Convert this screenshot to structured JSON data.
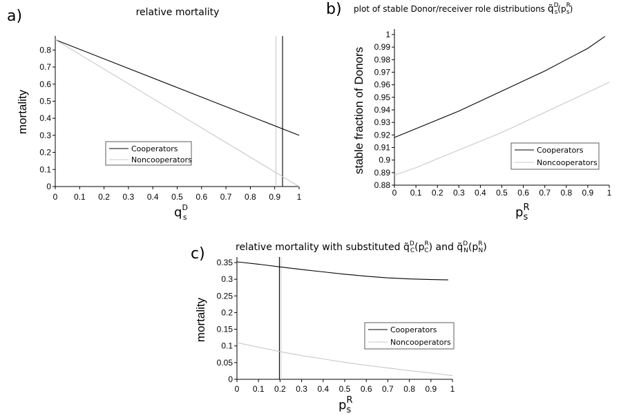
{
  "chart_data": [
    {
      "panel": "a)",
      "type": "line",
      "title": "relative mortality",
      "ylabel": "mortality",
      "xlabel": {
        "base": "q",
        "sub": "s",
        "sup": "D"
      },
      "xlim": [
        0,
        1
      ],
      "ylim": [
        0,
        0.85
      ],
      "xticks": [
        "0",
        "0.1",
        "0.2",
        "0.3",
        "0.4",
        "0.5",
        "0.6",
        "0.7",
        "0.8",
        "0.9",
        "1"
      ],
      "yticks": [
        "0",
        "0.1",
        "0.2",
        "0.3",
        "0.4",
        "0.5",
        "0.6",
        "0.7",
        "0.8"
      ],
      "series": [
        {
          "name": "Cooperators",
          "color": "#000000",
          "x": [
            0,
            1
          ],
          "y": [
            0.86,
            0.3
          ]
        },
        {
          "name": "Noncooperators",
          "color": "#c8c8c8",
          "x": [
            0,
            1
          ],
          "y": [
            0.86,
            0.0
          ]
        }
      ],
      "vlines": [
        {
          "x": 0.932,
          "color": "#000000"
        },
        {
          "x": 0.905,
          "color": "#c8c8c8"
        }
      ],
      "legend": "center"
    },
    {
      "panel": "b)",
      "type": "line",
      "title": {
        "text": "plot of stable Donor/receiver role distributions ",
        "base": "q̃",
        "sub": "s",
        "sup": "D",
        "arg_base": "p",
        "arg_sub": "s",
        "arg_sup": "R"
      },
      "ylabel": "stable fraction of Donors",
      "xlabel": {
        "base": "p",
        "sub": "s",
        "sup": "R"
      },
      "xlim": [
        0,
        1
      ],
      "ylim": [
        0.88,
        1
      ],
      "xticks": [
        "0",
        "0.1",
        "0.2",
        "0.3",
        "0.4",
        "0.5",
        "0.6",
        "0.7",
        "0.8",
        "0.9",
        "1"
      ],
      "yticks": [
        "0.88",
        "0.89",
        "0.9",
        "0.91",
        "0.92",
        "0.93",
        "0.94",
        "0.95",
        "0.96",
        "0.97",
        "0.98",
        "0.99",
        "1"
      ],
      "series": [
        {
          "name": "Cooperators",
          "color": "#000000",
          "x": [
            0,
            0.1,
            0.2,
            0.3,
            0.4,
            0.5,
            0.6,
            0.7,
            0.8,
            0.9,
            0.98
          ],
          "y": [
            0.918,
            0.925,
            0.932,
            0.939,
            0.947,
            0.955,
            0.963,
            0.971,
            0.98,
            0.989,
            0.9985
          ]
        },
        {
          "name": "Noncooperators",
          "color": "#c8c8c8",
          "x": [
            0,
            0.1,
            0.2,
            0.3,
            0.4,
            0.5,
            0.6,
            0.7,
            0.8,
            0.9,
            1.0
          ],
          "y": [
            0.888,
            0.894,
            0.901,
            0.908,
            0.915,
            0.922,
            0.93,
            0.938,
            0.946,
            0.954,
            0.962
          ]
        }
      ],
      "legend": "bottom-right"
    },
    {
      "panel": "c)",
      "type": "line",
      "title": {
        "text": "relative mortality with substituted ",
        "t1": {
          "base": "q̃",
          "sub": "C",
          "sup": "D",
          "arg_base": "p",
          "arg_sub": "C",
          "arg_sup": "R"
        },
        "join": " and ",
        "t2": {
          "base": "q̃",
          "sub": "N",
          "sup": "D",
          "arg_base": "p",
          "arg_sub": "N",
          "arg_sup": "R"
        }
      },
      "ylabel": "mortality",
      "xlabel": {
        "base": "p",
        "sub": "s",
        "sup": "R"
      },
      "xlim": [
        0,
        1
      ],
      "ylim": [
        0,
        0.35
      ],
      "xticks": [
        "0",
        "0.1",
        "0.2",
        "0.3",
        "0.4",
        "0.5",
        "0.6",
        "0.7",
        "0.8",
        "0.9",
        "1"
      ],
      "yticks": [
        "0",
        "0.05",
        "0.1",
        "0.15",
        "0.2",
        "0.25",
        "0.3",
        "0.35"
      ],
      "series": [
        {
          "name": "Cooperators",
          "color": "#000000",
          "x": [
            0,
            0.1,
            0.2,
            0.3,
            0.4,
            0.5,
            0.6,
            0.7,
            0.8,
            0.9,
            0.98
          ],
          "y": [
            0.352,
            0.345,
            0.337,
            0.329,
            0.322,
            0.315,
            0.309,
            0.304,
            0.301,
            0.299,
            0.298
          ]
        },
        {
          "name": "Noncooperators",
          "color": "#c8c8c8",
          "x": [
            0,
            0.1,
            0.2,
            0.3,
            0.4,
            0.5,
            0.6,
            0.7,
            0.8,
            0.9,
            1.0
          ],
          "y": [
            0.11,
            0.096,
            0.083,
            0.071,
            0.061,
            0.051,
            0.042,
            0.034,
            0.026,
            0.019,
            0.011
          ]
        }
      ],
      "vlines": [
        {
          "x": 0.197,
          "color": "#000000"
        },
        {
          "x": 0.204,
          "color": "#c8c8c8"
        }
      ],
      "legend": "right"
    }
  ]
}
